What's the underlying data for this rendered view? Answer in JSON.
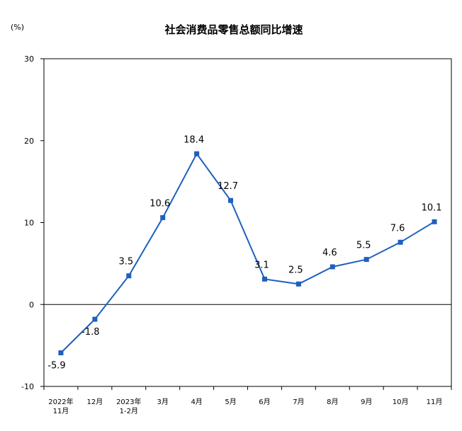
{
  "chart_data": {
    "type": "line",
    "title": "社会消费品零售总额同比增速",
    "unit": "(%)",
    "xlabel": "",
    "ylabel": "",
    "ylim": [
      -10,
      30
    ],
    "yticks": [
      "30",
      "20",
      "10",
      "0",
      "-10"
    ],
    "ytick_values": [
      30,
      20,
      10,
      0,
      -10
    ],
    "grid": false,
    "legend": "none",
    "categories": [
      [
        "2022年",
        "11月"
      ],
      [
        "12月"
      ],
      [
        "2023年",
        "1-2月"
      ],
      [
        "3月"
      ],
      [
        "4月"
      ],
      [
        "5月"
      ],
      [
        "6月"
      ],
      [
        "7月"
      ],
      [
        "8月"
      ],
      [
        "9月"
      ],
      [
        "10月"
      ],
      [
        "11月"
      ]
    ],
    "values": [
      -5.9,
      -1.8,
      3.5,
      10.6,
      18.4,
      12.7,
      3.1,
      2.5,
      4.6,
      5.5,
      7.6,
      10.1
    ],
    "data_labels": [
      "-5.9",
      "-1.8",
      "3.5",
      "10.6",
      "18.4",
      "12.7",
      "3.1",
      "2.5",
      "4.6",
      "5.5",
      "7.6",
      "10.1"
    ],
    "line_color": "#1f5fbf"
  }
}
